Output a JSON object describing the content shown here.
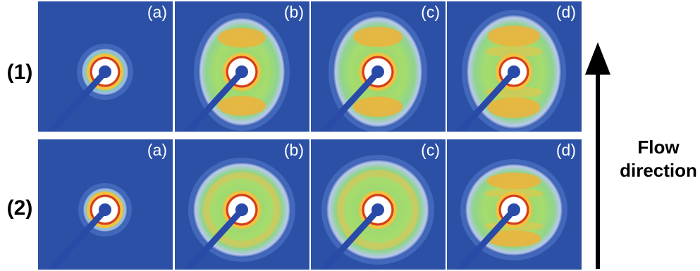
{
  "row_labels": [
    "(1)",
    "(2)"
  ],
  "panel_letters": [
    "(a)",
    "(b)",
    "(c)",
    "(d)"
  ],
  "flow_label": {
    "line1": "Flow",
    "line2": "direction"
  },
  "colors": {
    "background": "#2b50a6",
    "halo_green": "#9fd86a",
    "arc_yellow": "#f0b23a",
    "ring_red": "#d43a2a",
    "beam_stop": "#2a4aa8",
    "text_on_panel": "#ffffff"
  }
}
